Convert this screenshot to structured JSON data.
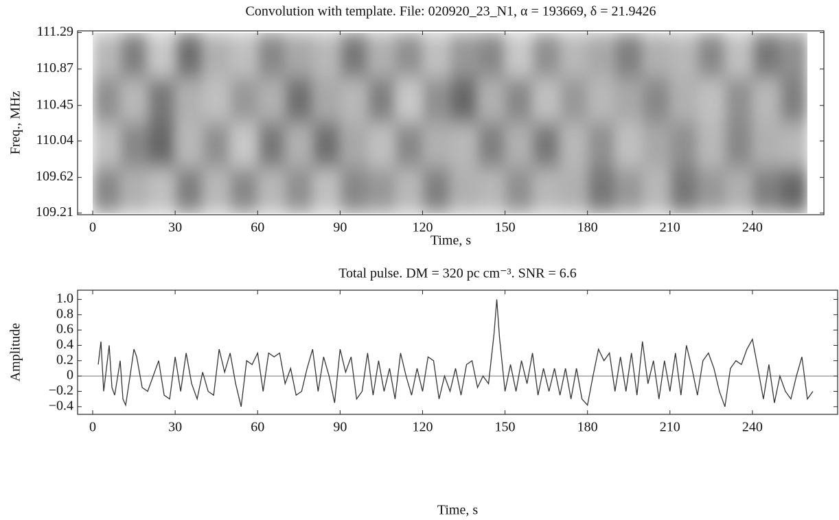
{
  "chart_data": [
    {
      "type": "heatmap",
      "title": "Convolution with template. File: 020920_23_N1, α = 193669, δ = 21.9426",
      "xlabel": "Time, s",
      "ylabel": "Freq., MHz",
      "x_extent": [
        0,
        260
      ],
      "y_extent": [
        109.21,
        111.29
      ],
      "xlim": [
        -5.5,
        266
      ],
      "ylim": [
        109.19,
        111.31
      ],
      "xticks": [
        0,
        30,
        60,
        90,
        120,
        150,
        180,
        210,
        240
      ],
      "yticks": [
        109.21,
        109.62,
        110.04,
        110.45,
        110.87,
        111.29
      ],
      "z": [
        [
          0.3,
          -0.4,
          0.5,
          -0.6,
          0.2,
          0.4,
          -0.3,
          0.1,
          0.3,
          -0.5,
          0.2,
          -0.2,
          0.4,
          -0.1,
          -0.3,
          0.5,
          -0.2,
          0.3,
          0.1,
          -0.4,
          0.2,
          0.3,
          -0.3,
          0.4,
          -0.5,
          -0.2
        ],
        [
          -0.2,
          0.3,
          -0.5,
          0.2,
          0.4,
          -0.1,
          0.2,
          -0.6,
          0.1,
          0.3,
          -0.4,
          0.5,
          -0.2,
          -0.7,
          0.2,
          -0.3,
          0.4,
          -0.1,
          0.3,
          0.1,
          -0.3,
          0.2,
          0.4,
          -0.2,
          0.3,
          -0.4
        ],
        [
          0.4,
          -0.3,
          -0.7,
          0.3,
          -0.2,
          0.5,
          -0.5,
          0.2,
          -0.6,
          0.1,
          0.4,
          -0.3,
          0.2,
          0.3,
          -0.4,
          0.2,
          -0.5,
          0.3,
          -0.2,
          0.4,
          0.1,
          -0.2,
          0.3,
          -0.3,
          0.2,
          0.3
        ],
        [
          -0.3,
          0.2,
          0.4,
          -0.4,
          0.3,
          -0.3,
          0.3,
          -0.2,
          0.4,
          -0.3,
          -0.1,
          0.3,
          -0.4,
          0.2,
          0.3,
          -0.2,
          0.3,
          0.2,
          -0.5,
          -0.1,
          0.3,
          -0.5,
          -0.1,
          0.2,
          -0.4,
          -0.7
        ]
      ],
      "color": "#a0a0a0"
    },
    {
      "type": "line",
      "title": "Total pulse. DM = 320 pc cm⁻³. SNR = 6.6",
      "xlabel": "Time, s",
      "ylabel": "Amplitude",
      "xlim": [
        -5.5,
        271
      ],
      "ylim": [
        -0.5,
        1.12
      ],
      "xticks": [
        0,
        30,
        60,
        90,
        120,
        150,
        180,
        210,
        240
      ],
      "yticks": [
        {
          "value": -0.4,
          "label": "−0.4"
        },
        {
          "value": -0.2,
          "label": "−0.2"
        },
        0,
        0.2,
        0.4,
        0.6,
        0.8,
        {
          "value": 1,
          "label": "1.0"
        }
      ],
      "zero_line": true,
      "series": [
        {
          "color": "#333333",
          "x": [
            2,
            3,
            4,
            6,
            7,
            8,
            10,
            11,
            12,
            14,
            15,
            16,
            18,
            20,
            22,
            24,
            26,
            28,
            30,
            32,
            34,
            36,
            38,
            40,
            42,
            44,
            46,
            48,
            50,
            52,
            54,
            56,
            58,
            60,
            62,
            64,
            66,
            68,
            70,
            72,
            74,
            76,
            78,
            80,
            82,
            84,
            86,
            88,
            90,
            92,
            94,
            96,
            98,
            100,
            102,
            104,
            106,
            108,
            110,
            112,
            114,
            116,
            118,
            120,
            122,
            124,
            126,
            128,
            130,
            132,
            134,
            136,
            138,
            140,
            142,
            144,
            146,
            147,
            148,
            150,
            152,
            154,
            156,
            158,
            160,
            162,
            164,
            166,
            168,
            170,
            172,
            174,
            176,
            178,
            180,
            182,
            184,
            186,
            188,
            190,
            192,
            194,
            196,
            198,
            200,
            202,
            204,
            206,
            208,
            210,
            212,
            214,
            216,
            218,
            220,
            222,
            224,
            226,
            228,
            230,
            232,
            234,
            236,
            238,
            240,
            242,
            244,
            246,
            248,
            250,
            252,
            254,
            256,
            258,
            260,
            262
          ],
          "values": [
            0.15,
            0.45,
            -0.2,
            0.4,
            -0.15,
            -0.25,
            0.2,
            -0.3,
            -0.38,
            0.1,
            0.35,
            0.25,
            -0.15,
            -0.2,
            0.0,
            0.2,
            -0.25,
            -0.3,
            0.25,
            -0.2,
            0.3,
            -0.1,
            -0.3,
            0.05,
            -0.2,
            -0.25,
            0.35,
            0.05,
            0.3,
            -0.1,
            -0.4,
            0.2,
            0.15,
            0.3,
            -0.2,
            0.3,
            0.25,
            0.3,
            -0.1,
            0.1,
            -0.25,
            -0.2,
            0.1,
            0.35,
            -0.2,
            0.25,
            0.0,
            -0.35,
            0.35,
            0.05,
            0.25,
            -0.3,
            -0.2,
            0.3,
            -0.25,
            0.2,
            -0.2,
            0.1,
            -0.3,
            0.3,
            0.0,
            -0.25,
            0.1,
            -0.2,
            0.25,
            0.2,
            -0.3,
            0.0,
            -0.2,
            0.1,
            -0.25,
            0.15,
            0.2,
            -0.15,
            0.0,
            -0.1,
            0.55,
            1.0,
            0.5,
            -0.2,
            0.15,
            -0.2,
            0.2,
            -0.1,
            0.3,
            -0.25,
            0.1,
            -0.2,
            0.1,
            -0.25,
            0.1,
            -0.3,
            0.1,
            -0.3,
            -0.38,
            0.0,
            0.35,
            0.2,
            0.3,
            -0.2,
            0.25,
            -0.2,
            0.3,
            -0.25,
            0.45,
            -0.1,
            0.2,
            -0.3,
            0.2,
            -0.2,
            0.3,
            -0.25,
            0.4,
            0.1,
            -0.25,
            0.2,
            0.3,
            0.1,
            -0.2,
            -0.4,
            0.1,
            0.2,
            0.15,
            0.35,
            0.48,
            0.1,
            -0.3,
            0.15,
            -0.35,
            0.0,
            -0.2,
            -0.3,
            0.0,
            0.25,
            -0.3,
            -0.2
          ]
        }
      ]
    }
  ]
}
